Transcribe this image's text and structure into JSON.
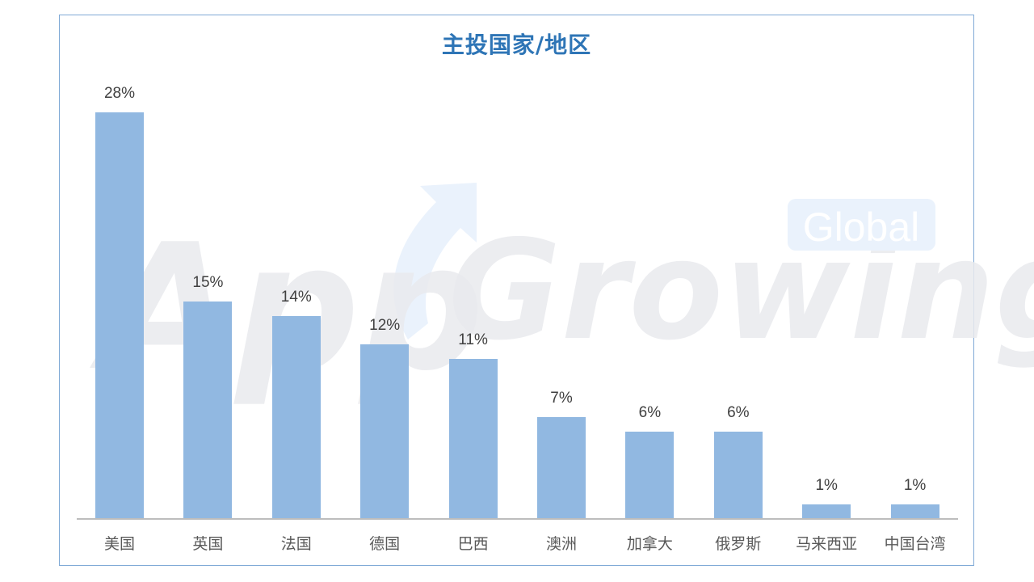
{
  "chart_data": {
    "type": "bar",
    "title": "主投国家/地区",
    "categories": [
      "美国",
      "英国",
      "法国",
      "德国",
      "巴西",
      "澳洲",
      "加拿大",
      "俄罗斯",
      "马来西亚",
      "中国台湾"
    ],
    "values": [
      28,
      15,
      14,
      12,
      11,
      7,
      6,
      6,
      1,
      1
    ],
    "value_labels": [
      "28%",
      "15%",
      "14%",
      "12%",
      "11%",
      "7%",
      "6%",
      "6%",
      "1%",
      "1%"
    ],
    "xlabel": "",
    "ylabel": "",
    "unit": "%",
    "ylim": [
      0,
      28
    ],
    "grid": false,
    "legend": "none",
    "bar_color": "#8DB6E0"
  },
  "title_color": "#2E75B6",
  "watermark": {
    "brand": "AppGrowing",
    "badge": "Global"
  }
}
